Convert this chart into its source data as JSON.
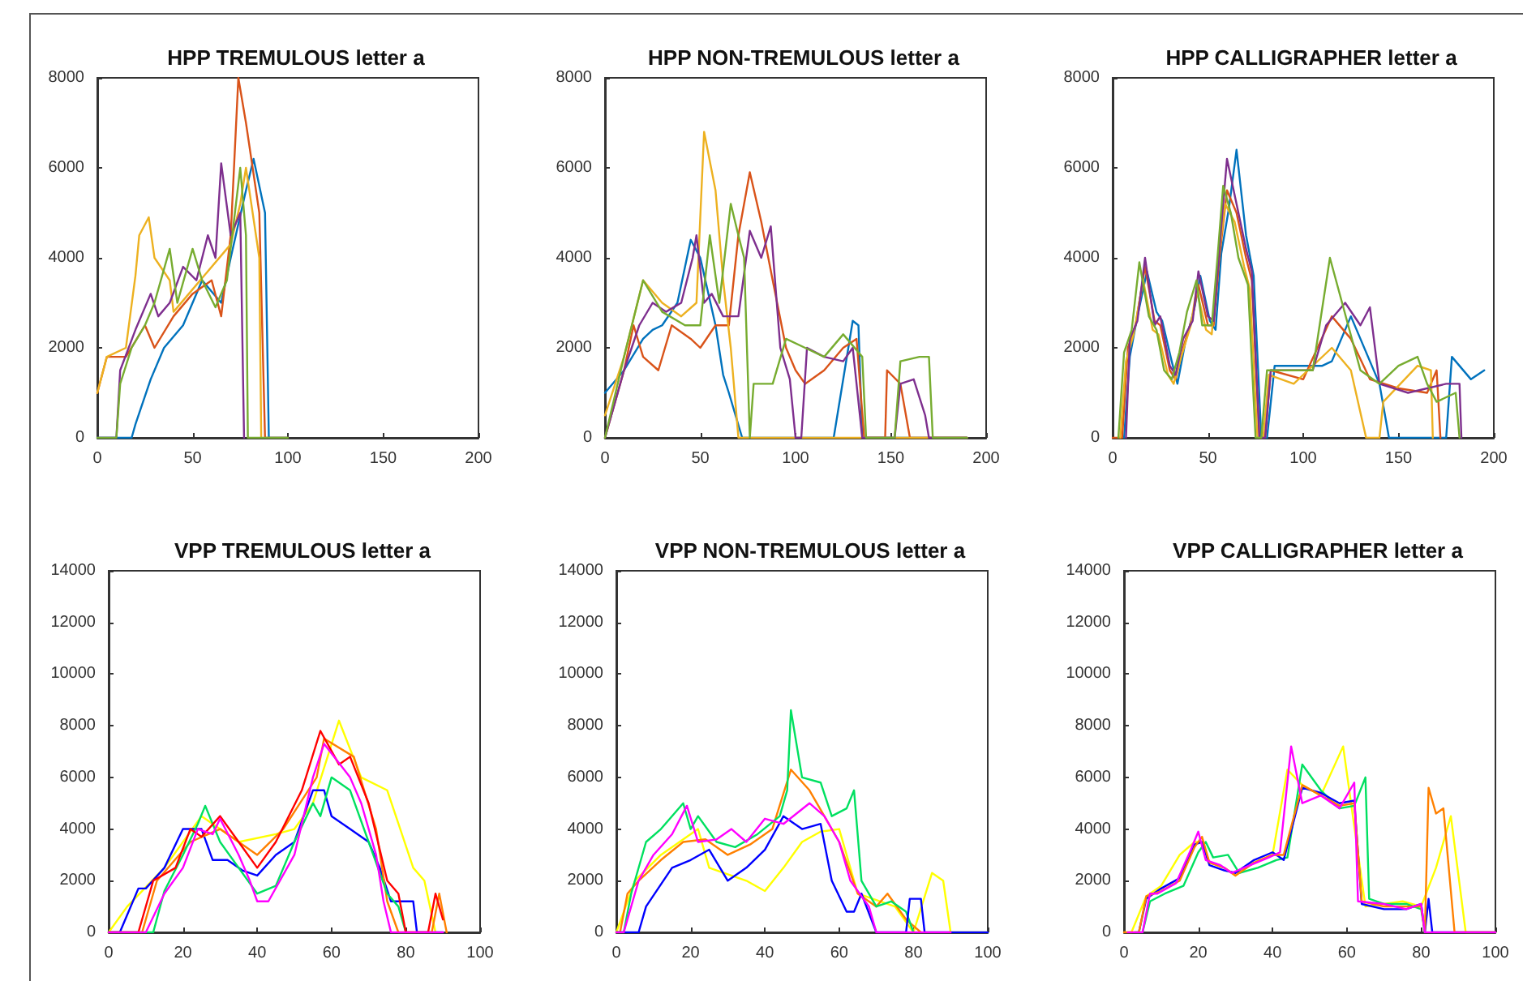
{
  "chart_data": [
    {
      "type": "line",
      "title": "HPP TREMULOUS letter a",
      "xlim": [
        0,
        200
      ],
      "ylim": [
        0,
        8000
      ],
      "xticks": [
        0,
        50,
        100,
        150,
        200
      ],
      "yticks": [
        0,
        2000,
        4000,
        6000,
        8000
      ],
      "line_style": "solid",
      "series": [
        {
          "color": "#0072bd",
          "x": [
            0,
            18,
            20,
            28,
            35,
            45,
            55,
            65,
            70,
            78,
            82,
            88,
            90,
            100
          ],
          "values": [
            0,
            0,
            300,
            1300,
            2000,
            2500,
            3500,
            3000,
            4000,
            5500,
            6200,
            5000,
            0,
            0
          ]
        },
        {
          "color": "#d95319",
          "x": [
            0,
            5,
            15,
            25,
            30,
            40,
            50,
            60,
            65,
            70,
            74,
            78,
            85,
            88,
            100
          ],
          "values": [
            1000,
            1800,
            1800,
            2500,
            2000,
            2700,
            3200,
            3500,
            2700,
            4500,
            8000,
            7000,
            5000,
            0,
            0
          ]
        },
        {
          "color": "#edb120",
          "x": [
            0,
            5,
            15,
            20,
            22,
            27,
            30,
            38,
            40,
            50,
            70,
            75,
            78,
            85,
            86
          ],
          "values": [
            1000,
            1800,
            2000,
            3600,
            4500,
            4900,
            4000,
            3500,
            2800,
            3300,
            4300,
            5200,
            6000,
            4000,
            0
          ]
        },
        {
          "color": "#7e2f8e",
          "x": [
            0,
            10,
            12,
            20,
            28,
            32,
            38,
            45,
            52,
            58,
            62,
            65,
            70,
            75,
            77
          ],
          "values": [
            0,
            0,
            1500,
            2400,
            3200,
            2700,
            3000,
            3800,
            3500,
            4500,
            4000,
            6100,
            4500,
            5000,
            0
          ]
        },
        {
          "color": "#77ac30",
          "x": [
            0,
            10,
            12,
            18,
            25,
            30,
            38,
            42,
            50,
            55,
            62,
            68,
            75,
            78,
            79,
            100
          ],
          "values": [
            0,
            0,
            1200,
            2000,
            2500,
            3000,
            4200,
            3000,
            4200,
            3500,
            2900,
            3500,
            6000,
            4500,
            0,
            0
          ]
        }
      ]
    },
    {
      "type": "line",
      "title": "HPP NON-TREMULOUS letter a",
      "xlim": [
        0,
        200
      ],
      "ylim": [
        0,
        8000
      ],
      "xticks": [
        0,
        50,
        100,
        150,
        200
      ],
      "yticks": [
        0,
        2000,
        4000,
        6000,
        8000
      ],
      "line_style": "solid",
      "series": [
        {
          "color": "#0072bd",
          "x": [
            0,
            10,
            20,
            25,
            30,
            38,
            45,
            50,
            58,
            62,
            65,
            72,
            120,
            130,
            133,
            135,
            190
          ],
          "values": [
            1000,
            1500,
            2200,
            2400,
            2500,
            3000,
            4400,
            4000,
            2500,
            1400,
            1000,
            0,
            0,
            2600,
            2500,
            0,
            0
          ]
        },
        {
          "color": "#d95319",
          "x": [
            0,
            10,
            15,
            20,
            28,
            35,
            45,
            50,
            58,
            65,
            70,
            76,
            82,
            88,
            95,
            100,
            105,
            115,
            125,
            132,
            136,
            147,
            148,
            155,
            160,
            190
          ],
          "values": [
            0,
            1500,
            2500,
            1800,
            1500,
            2500,
            2200,
            2000,
            2500,
            2500,
            4500,
            5900,
            4800,
            3500,
            2000,
            1500,
            1200,
            1500,
            2000,
            2200,
            0,
            0,
            1500,
            1200,
            0,
            0
          ]
        },
        {
          "color": "#edb120",
          "x": [
            0,
            10,
            20,
            30,
            40,
            48,
            52,
            58,
            62,
            66,
            70,
            190
          ],
          "values": [
            500,
            1800,
            3500,
            3000,
            2700,
            3000,
            6800,
            5500,
            3500,
            2000,
            0,
            0
          ]
        },
        {
          "color": "#7e2f8e",
          "x": [
            0,
            10,
            18,
            25,
            32,
            40,
            46,
            48,
            52,
            56,
            62,
            70,
            76,
            82,
            87,
            92,
            97,
            100,
            103,
            106,
            115,
            125,
            130,
            135,
            152,
            155,
            162,
            168,
            170,
            190
          ],
          "values": [
            0,
            1500,
            2500,
            3000,
            2800,
            3000,
            4000,
            4500,
            3000,
            3200,
            2700,
            2700,
            4600,
            4000,
            4700,
            2000,
            1300,
            0,
            0,
            2000,
            1800,
            1700,
            2000,
            0,
            0,
            1200,
            1300,
            500,
            0,
            0
          ]
        },
        {
          "color": "#77ac30",
          "x": [
            0,
            10,
            20,
            30,
            42,
            50,
            55,
            60,
            66,
            70,
            73,
            76,
            78,
            88,
            95,
            105,
            115,
            125,
            135,
            137,
            152,
            155,
            165,
            170,
            172,
            190
          ],
          "values": [
            0,
            1800,
            3500,
            2800,
            2500,
            2500,
            4500,
            3000,
            5200,
            4500,
            4000,
            0,
            1200,
            1200,
            2200,
            2000,
            1800,
            2300,
            1800,
            0,
            0,
            1700,
            1800,
            1800,
            0,
            0
          ]
        }
      ]
    },
    {
      "type": "line",
      "title": "HPP CALLIGRAPHER letter a",
      "xlim": [
        0,
        200
      ],
      "ylim": [
        0,
        8000
      ],
      "xticks": [
        0,
        50,
        100,
        150,
        200
      ],
      "yticks": [
        0,
        2000,
        4000,
        6000,
        8000
      ],
      "line_style": "solid",
      "series": [
        {
          "color": "#0072bd",
          "x": [
            6,
            9,
            13,
            18,
            23,
            26,
            31,
            34,
            38,
            43,
            46,
            51,
            54,
            57,
            61,
            65,
            70,
            74,
            78,
            81,
            85,
            110,
            115,
            125,
            140,
            145,
            175,
            178,
            188,
            195
          ],
          "values": [
            0,
            1800,
            2700,
            3700,
            2800,
            2600,
            1700,
            1200,
            2100,
            2900,
            3600,
            2600,
            2400,
            4100,
            5100,
            6400,
            4500,
            3600,
            0,
            0,
            1600,
            1600,
            1700,
            2700,
            1200,
            0,
            0,
            1800,
            1300,
            1500
          ]
        },
        {
          "color": "#d95319",
          "x": [
            0,
            5,
            8,
            12,
            17,
            22,
            25,
            30,
            33,
            37,
            42,
            45,
            50,
            53,
            56,
            60,
            65,
            70,
            73,
            77,
            80,
            83,
            100,
            115,
            125,
            135,
            150,
            165,
            170,
            172
          ],
          "values": [
            0,
            0,
            2000,
            2500,
            3800,
            2600,
            2500,
            1500,
            1300,
            2000,
            2700,
            3400,
            2500,
            2500,
            4000,
            5500,
            5000,
            4000,
            3500,
            0,
            0,
            1500,
            1300,
            2700,
            2200,
            1300,
            1100,
            1000,
            1500,
            0
          ]
        },
        {
          "color": "#edb120",
          "x": [
            4,
            7,
            11,
            16,
            21,
            24,
            29,
            32,
            36,
            41,
            44,
            49,
            52,
            55,
            59,
            64,
            69,
            72,
            76,
            79,
            82,
            95,
            115,
            125,
            133,
            140,
            142,
            160,
            167,
            168
          ],
          "values": [
            0,
            1700,
            2300,
            3500,
            2400,
            2300,
            1400,
            1200,
            1800,
            2500,
            3300,
            2400,
            2300,
            3800,
            5200,
            4800,
            3800,
            3300,
            0,
            0,
            1400,
            1200,
            2000,
            1500,
            0,
            0,
            800,
            1600,
            1500,
            0
          ]
        },
        {
          "color": "#7e2f8e",
          "x": [
            7,
            9,
            13,
            17,
            22,
            25,
            30,
            33,
            37,
            42,
            45,
            50,
            53,
            56,
            60,
            65,
            70,
            73,
            77,
            80,
            83,
            95,
            105,
            112,
            122,
            130,
            135,
            140,
            155,
            175,
            182,
            183
          ],
          "values": [
            0,
            2200,
            2600,
            4000,
            2500,
            2700,
            1600,
            1400,
            2200,
            2600,
            3700,
            2700,
            2600,
            4200,
            6200,
            5200,
            4200,
            3700,
            0,
            0,
            1500,
            1500,
            1500,
            2500,
            3000,
            2500,
            2900,
            1200,
            1000,
            1200,
            1200,
            0
          ]
        },
        {
          "color": "#77ac30",
          "x": [
            3,
            6,
            10,
            14,
            19,
            23,
            27,
            31,
            35,
            39,
            44,
            47,
            52,
            55,
            58,
            62,
            66,
            71,
            75,
            78,
            81,
            84,
            95,
            105,
            114,
            130,
            140,
            150,
            160,
            165,
            170,
            180,
            182
          ],
          "values": [
            0,
            1900,
            2400,
            3900,
            2700,
            2400,
            1500,
            1300,
            1900,
            2800,
            3500,
            2500,
            2500,
            4000,
            5600,
            5000,
            4000,
            3400,
            0,
            0,
            1500,
            1500,
            1500,
            1500,
            4000,
            1500,
            1200,
            1600,
            1800,
            1200,
            800,
            1000,
            0
          ]
        }
      ]
    },
    {
      "type": "line",
      "title": "VPP TREMULOUS letter a",
      "xlim": [
        0,
        100
      ],
      "ylim": [
        0,
        14000
      ],
      "xticks": [
        0,
        20,
        40,
        60,
        80,
        100
      ],
      "yticks": [
        0,
        2000,
        4000,
        6000,
        8000,
        10000,
        12000,
        14000
      ],
      "line_style": "solid",
      "series": [
        {
          "color": "#ffff00",
          "x": [
            0,
            5,
            15,
            25,
            30,
            35,
            45,
            50,
            55,
            62,
            68,
            75,
            82,
            85,
            88
          ],
          "values": [
            0,
            1000,
            2500,
            4500,
            4000,
            3500,
            3800,
            4000,
            5000,
            8200,
            6000,
            5500,
            2500,
            2000,
            0
          ]
        },
        {
          "color": "#0000ff",
          "x": [
            0,
            3,
            8,
            10,
            15,
            20,
            25,
            28,
            32,
            36,
            40,
            45,
            50,
            55,
            58,
            60,
            65,
            70,
            73,
            76,
            82,
            83,
            90
          ],
          "values": [
            0,
            0,
            1700,
            1700,
            2500,
            4000,
            4000,
            2800,
            2800,
            2400,
            2200,
            3000,
            3500,
            5500,
            5500,
            4500,
            4000,
            3500,
            2500,
            1200,
            1200,
            0,
            0
          ]
        },
        {
          "color": "#ff8000",
          "x": [
            0,
            9,
            13,
            22,
            30,
            40,
            47,
            56,
            58,
            66,
            72,
            75,
            78,
            87,
            89,
            91
          ],
          "values": [
            0,
            0,
            2000,
            3500,
            4000,
            3000,
            4000,
            6000,
            7500,
            6800,
            4000,
            1200,
            0,
            0,
            1500,
            0
          ]
        },
        {
          "color": "#00e060",
          "x": [
            0,
            12,
            15,
            20,
            24,
            26,
            30,
            35,
            40,
            45,
            50,
            55,
            57,
            60,
            65,
            70,
            75,
            78,
            80
          ],
          "values": [
            0,
            0,
            1600,
            3000,
            4200,
            4900,
            3500,
            2500,
            1500,
            1800,
            3500,
            5000,
            4500,
            6000,
            5500,
            3500,
            1500,
            1000,
            0
          ]
        },
        {
          "color": "#ff0000",
          "x": [
            0,
            8,
            12,
            18,
            22,
            25,
            30,
            35,
            40,
            45,
            52,
            57,
            62,
            65,
            70,
            75,
            78,
            80,
            86,
            88,
            90
          ],
          "values": [
            0,
            0,
            2000,
            2500,
            4000,
            3700,
            4500,
            3500,
            2500,
            3500,
            5500,
            7800,
            6500,
            6800,
            5000,
            2000,
            1500,
            0,
            0,
            1500,
            500
          ]
        },
        {
          "color": "#ff00ff",
          "x": [
            0,
            10,
            15,
            20,
            24,
            28,
            30,
            35,
            38,
            40,
            43,
            50,
            55,
            58,
            65,
            68,
            72,
            74,
            76,
            90
          ],
          "values": [
            0,
            0,
            1500,
            2500,
            4000,
            3800,
            4400,
            3000,
            2000,
            1200,
            1200,
            3000,
            6000,
            7300,
            6000,
            5000,
            3000,
            1200,
            0,
            0
          ]
        }
      ]
    },
    {
      "type": "line",
      "title": "VPP NON-TREMULOUS letter a",
      "xlim": [
        0,
        100
      ],
      "ylim": [
        0,
        14000
      ],
      "xticks": [
        0,
        20,
        40,
        60,
        80,
        100
      ],
      "yticks": [
        0,
        2000,
        4000,
        6000,
        8000,
        10000,
        12000,
        14000
      ],
      "line_style": "solid",
      "series": [
        {
          "color": "#ffff00",
          "x": [
            0,
            5,
            12,
            22,
            25,
            35,
            40,
            45,
            50,
            55,
            60,
            65,
            75,
            80,
            85,
            88,
            90,
            100
          ],
          "values": [
            0,
            2000,
            3000,
            4000,
            2500,
            2000,
            1600,
            2500,
            3500,
            3900,
            4000,
            1500,
            1000,
            0,
            2300,
            2000,
            0,
            0
          ]
        },
        {
          "color": "#ff8000",
          "x": [
            0,
            1,
            3,
            6,
            12,
            18,
            24,
            30,
            36,
            42,
            47,
            52,
            56,
            60,
            65,
            70,
            73,
            78,
            82
          ],
          "values": [
            0,
            0,
            1500,
            2000,
            2800,
            3500,
            3600,
            3000,
            3400,
            4000,
            6300,
            5500,
            4500,
            3500,
            1500,
            1000,
            1500,
            500,
            0
          ]
        },
        {
          "color": "#00e060",
          "x": [
            0,
            2,
            4,
            8,
            12,
            18,
            20,
            22,
            27,
            32,
            38,
            44,
            46,
            47,
            50,
            55,
            58,
            62,
            64,
            66,
            70,
            74,
            78,
            80
          ],
          "values": [
            0,
            0,
            1500,
            3500,
            4000,
            5000,
            4000,
            4500,
            3500,
            3300,
            3800,
            4500,
            5500,
            8600,
            6000,
            5800,
            4500,
            4800,
            5500,
            2000,
            1000,
            1200,
            800,
            0
          ]
        },
        {
          "color": "#0000ff",
          "x": [
            0,
            6,
            8,
            15,
            20,
            25,
            30,
            35,
            40,
            45,
            50,
            55,
            58,
            62,
            64,
            66,
            70,
            78,
            79,
            82,
            83,
            100
          ],
          "values": [
            0,
            0,
            1000,
            2500,
            2800,
            3200,
            2000,
            2500,
            3200,
            4500,
            4000,
            4200,
            2000,
            800,
            800,
            1500,
            0,
            0,
            1300,
            1300,
            0,
            0
          ]
        },
        {
          "color": "#ff00ff",
          "x": [
            0,
            2,
            6,
            10,
            15,
            19,
            22,
            27,
            31,
            35,
            40,
            45,
            52,
            56,
            60,
            63,
            68,
            70,
            90
          ],
          "values": [
            0,
            0,
            2000,
            3000,
            3800,
            4900,
            3500,
            3600,
            4000,
            3500,
            4400,
            4200,
            5000,
            4500,
            3500,
            2000,
            1000,
            0,
            0
          ]
        }
      ]
    },
    {
      "type": "line",
      "title": "VPP CALLIGRAPHER letter a",
      "xlim": [
        0,
        100
      ],
      "ylim": [
        0,
        14000
      ],
      "xticks": [
        0,
        20,
        40,
        60,
        80,
        100
      ],
      "yticks": [
        0,
        2000,
        4000,
        6000,
        8000,
        10000,
        12000,
        14000
      ],
      "line_style": "solid",
      "series": [
        {
          "color": "#ffff00",
          "x": [
            0,
            2,
            6,
            10,
            15,
            19,
            21,
            23,
            27,
            30,
            35,
            40,
            44,
            48,
            53,
            59,
            65,
            75,
            80,
            84,
            88,
            92,
            100
          ],
          "values": [
            0,
            0,
            1400,
            1800,
            3000,
            3500,
            3500,
            2700,
            2500,
            2200,
            2700,
            3000,
            6300,
            5700,
            5300,
            7200,
            1000,
            1200,
            1000,
            2500,
            4500,
            0,
            0
          ]
        },
        {
          "color": "#00e060",
          "x": [
            3,
            5,
            7,
            11,
            16,
            20,
            22,
            24,
            28,
            31,
            36,
            41,
            44,
            48,
            53,
            58,
            62,
            65,
            66,
            70,
            76,
            80,
            81
          ],
          "values": [
            0,
            0,
            1200,
            1500,
            1800,
            3100,
            3500,
            2900,
            3000,
            2300,
            2500,
            2800,
            2900,
            6500,
            5500,
            4800,
            4900,
            6000,
            1300,
            1100,
            1100,
            900,
            0
          ]
        },
        {
          "color": "#0000ff",
          "x": [
            4,
            6,
            10,
            15,
            19,
            21,
            23,
            27,
            30,
            35,
            40,
            43,
            48,
            53,
            58,
            62,
            64,
            70,
            76,
            80,
            81,
            82,
            83,
            100
          ],
          "values": [
            0,
            1300,
            1700,
            2100,
            3400,
            3500,
            2600,
            2400,
            2300,
            2800,
            3100,
            2800,
            5600,
            5400,
            5000,
            5100,
            1100,
            900,
            900,
            1100,
            0,
            1300,
            0,
            0
          ]
        },
        {
          "color": "#ff8000",
          "x": [
            0,
            2,
            4,
            6,
            10,
            15,
            19,
            21,
            23,
            27,
            30,
            35,
            40,
            43,
            48,
            53,
            58,
            62,
            64,
            70,
            76,
            80,
            81,
            82,
            84,
            86,
            89,
            100
          ],
          "values": [
            0,
            0,
            0,
            1400,
            1600,
            2000,
            3300,
            3700,
            2700,
            2500,
            2200,
            2700,
            3000,
            3000,
            5700,
            5300,
            4900,
            5000,
            1200,
            1000,
            1000,
            1000,
            0,
            5600,
            4600,
            4800,
            0,
            0
          ]
        },
        {
          "color": "#ff00ff",
          "x": [
            1,
            5,
            7,
            9,
            14,
            18,
            20,
            22,
            26,
            29,
            34,
            39,
            42,
            45,
            48,
            53,
            58,
            62,
            63,
            70,
            76,
            80,
            81,
            100
          ],
          "values": [
            0,
            0,
            1500,
            1500,
            1900,
            3200,
            3900,
            2800,
            2600,
            2300,
            2600,
            2900,
            3100,
            7200,
            5000,
            5300,
            4800,
            5800,
            1200,
            1100,
            900,
            1100,
            0,
            0
          ]
        }
      ]
    }
  ]
}
